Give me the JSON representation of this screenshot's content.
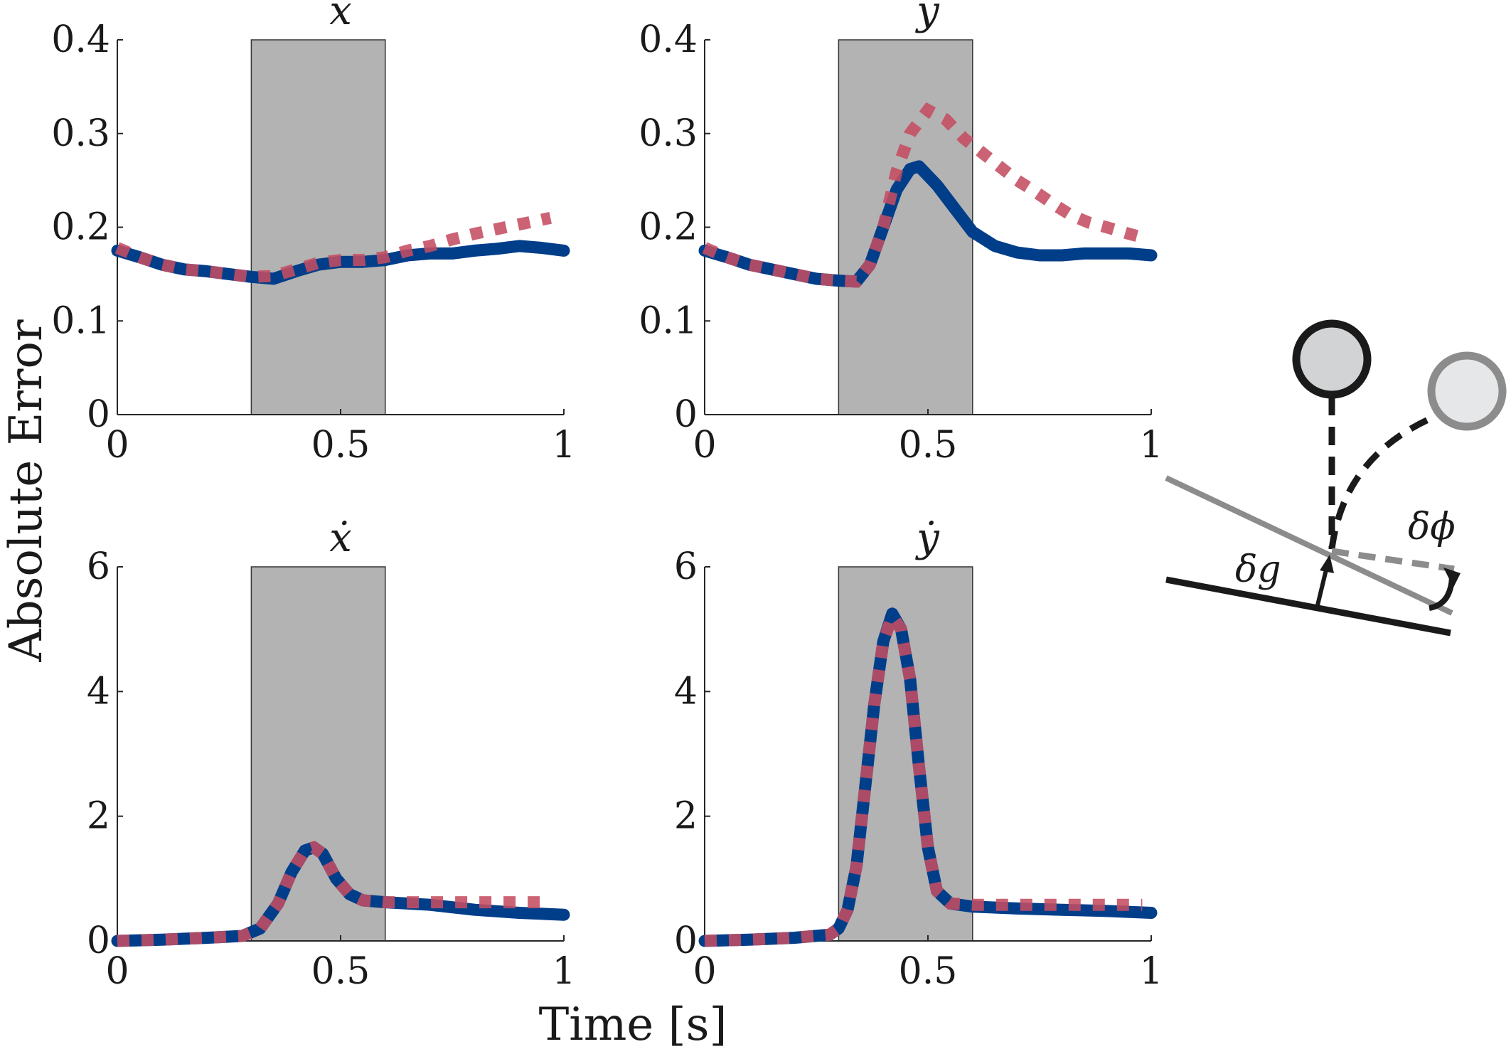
{
  "figure": {
    "ylabel": "Absolute Error",
    "xlabel": "Time [s]",
    "shaded_interval": [
      0.3,
      0.6
    ],
    "colors": {
      "solid_series": "#003e8a",
      "dotted_series": "#c44d62",
      "shade": "#b3b3b3",
      "diagram_dark": "#1a1a1a",
      "diagram_light": "#8c8c8c"
    }
  },
  "chart_data": [
    {
      "type": "line",
      "title": "x",
      "xlim": [
        0,
        1
      ],
      "ylim": [
        0,
        0.4
      ],
      "xticks": [
        "0",
        "0.5",
        "1"
      ],
      "yticks": [
        "0",
        "0.1",
        "0.2",
        "0.3",
        "0.4"
      ],
      "grid": false,
      "series": [
        {
          "style": "solid",
          "x": [
            0,
            0.05,
            0.1,
            0.15,
            0.2,
            0.25,
            0.3,
            0.35,
            0.4,
            0.45,
            0.5,
            0.55,
            0.6,
            0.65,
            0.7,
            0.75,
            0.8,
            0.85,
            0.9,
            0.95,
            1.0
          ],
          "y": [
            0.175,
            0.168,
            0.16,
            0.155,
            0.153,
            0.15,
            0.147,
            0.145,
            0.153,
            0.16,
            0.163,
            0.163,
            0.165,
            0.17,
            0.172,
            0.172,
            0.175,
            0.177,
            0.18,
            0.178,
            0.175
          ]
        },
        {
          "style": "dotted",
          "x": [
            0,
            0.05,
            0.1,
            0.15,
            0.2,
            0.25,
            0.3,
            0.35,
            0.4,
            0.45,
            0.5,
            0.55,
            0.6,
            0.65,
            0.7,
            0.75,
            0.8,
            0.85,
            0.9,
            0.95,
            0.97
          ],
          "y": [
            0.178,
            0.168,
            0.16,
            0.155,
            0.153,
            0.15,
            0.147,
            0.148,
            0.155,
            0.162,
            0.165,
            0.165,
            0.168,
            0.175,
            0.18,
            0.187,
            0.193,
            0.198,
            0.203,
            0.208,
            0.21
          ]
        }
      ]
    },
    {
      "type": "line",
      "title": "y",
      "xlim": [
        0,
        1
      ],
      "ylim": [
        0,
        0.4
      ],
      "xticks": [
        "0",
        "0.5",
        "1"
      ],
      "yticks": [
        "0",
        "0.1",
        "0.2",
        "0.3",
        "0.4"
      ],
      "grid": false,
      "series": [
        {
          "style": "solid",
          "x": [
            0,
            0.05,
            0.1,
            0.15,
            0.2,
            0.25,
            0.3,
            0.34,
            0.37,
            0.4,
            0.43,
            0.46,
            0.48,
            0.52,
            0.56,
            0.6,
            0.65,
            0.7,
            0.75,
            0.8,
            0.85,
            0.9,
            0.95,
            1.0
          ],
          "y": [
            0.175,
            0.168,
            0.16,
            0.155,
            0.15,
            0.145,
            0.143,
            0.142,
            0.16,
            0.2,
            0.24,
            0.262,
            0.265,
            0.245,
            0.22,
            0.195,
            0.18,
            0.173,
            0.17,
            0.17,
            0.172,
            0.172,
            0.172,
            0.17
          ]
        },
        {
          "style": "dotted",
          "x": [
            0,
            0.05,
            0.1,
            0.15,
            0.2,
            0.25,
            0.3,
            0.34,
            0.37,
            0.4,
            0.43,
            0.46,
            0.5,
            0.54,
            0.58,
            0.62,
            0.66,
            0.7,
            0.74,
            0.78,
            0.82,
            0.86,
            0.9,
            0.95,
            0.99
          ],
          "y": [
            0.178,
            0.168,
            0.16,
            0.155,
            0.15,
            0.145,
            0.143,
            0.142,
            0.16,
            0.2,
            0.26,
            0.3,
            0.325,
            0.315,
            0.295,
            0.28,
            0.265,
            0.25,
            0.238,
            0.225,
            0.213,
            0.205,
            0.2,
            0.193,
            0.188
          ]
        }
      ]
    },
    {
      "type": "line",
      "title": "ẋ",
      "xlim": [
        0,
        1
      ],
      "ylim": [
        0,
        6
      ],
      "xticks": [
        "0",
        "0.5",
        "1"
      ],
      "yticks": [
        "0",
        "2",
        "4",
        "6"
      ],
      "grid": false,
      "series": [
        {
          "style": "solid",
          "x": [
            0,
            0.1,
            0.2,
            0.28,
            0.32,
            0.36,
            0.39,
            0.42,
            0.44,
            0.46,
            0.49,
            0.52,
            0.55,
            0.6,
            0.7,
            0.8,
            0.9,
            1.0
          ],
          "y": [
            0,
            0.02,
            0.05,
            0.08,
            0.2,
            0.6,
            1.1,
            1.45,
            1.5,
            1.4,
            1.0,
            0.75,
            0.65,
            0.62,
            0.58,
            0.5,
            0.45,
            0.42
          ]
        },
        {
          "style": "dotted",
          "x": [
            0,
            0.1,
            0.2,
            0.28,
            0.32,
            0.36,
            0.39,
            0.42,
            0.44,
            0.46,
            0.49,
            0.52,
            0.55,
            0.6,
            0.7,
            0.8,
            0.9,
            0.96
          ],
          "y": [
            0,
            0.02,
            0.05,
            0.08,
            0.2,
            0.6,
            1.1,
            1.45,
            1.5,
            1.4,
            1.0,
            0.75,
            0.65,
            0.62,
            0.62,
            0.62,
            0.62,
            0.62
          ]
        }
      ]
    },
    {
      "type": "line",
      "title": "ẏ",
      "xlim": [
        0,
        1
      ],
      "ylim": [
        0,
        6
      ],
      "xticks": [
        "0",
        "0.5",
        "1"
      ],
      "yticks": [
        "0",
        "2",
        "4",
        "6"
      ],
      "grid": false,
      "series": [
        {
          "style": "solid",
          "x": [
            0,
            0.1,
            0.2,
            0.28,
            0.3,
            0.32,
            0.34,
            0.36,
            0.38,
            0.4,
            0.42,
            0.44,
            0.46,
            0.48,
            0.5,
            0.52,
            0.55,
            0.6,
            0.7,
            0.8,
            0.9,
            1.0
          ],
          "y": [
            0,
            0.02,
            0.05,
            0.1,
            0.2,
            0.5,
            1.2,
            2.5,
            3.8,
            4.8,
            5.25,
            5.0,
            4.2,
            2.8,
            1.5,
            0.8,
            0.6,
            0.55,
            0.52,
            0.5,
            0.48,
            0.45
          ]
        },
        {
          "style": "dotted",
          "x": [
            0,
            0.1,
            0.2,
            0.28,
            0.3,
            0.32,
            0.34,
            0.36,
            0.38,
            0.4,
            0.42,
            0.44,
            0.46,
            0.48,
            0.5,
            0.52,
            0.55,
            0.6,
            0.7,
            0.8,
            0.9,
            0.98
          ],
          "y": [
            0,
            0.02,
            0.05,
            0.1,
            0.2,
            0.5,
            1.2,
            2.5,
            3.8,
            4.8,
            5.2,
            5.0,
            4.2,
            2.8,
            1.5,
            0.8,
            0.6,
            0.58,
            0.58,
            0.58,
            0.58,
            0.58
          ]
        }
      ]
    }
  ],
  "diagram": {
    "label_g": "δg",
    "label_phi": "δϕ"
  }
}
